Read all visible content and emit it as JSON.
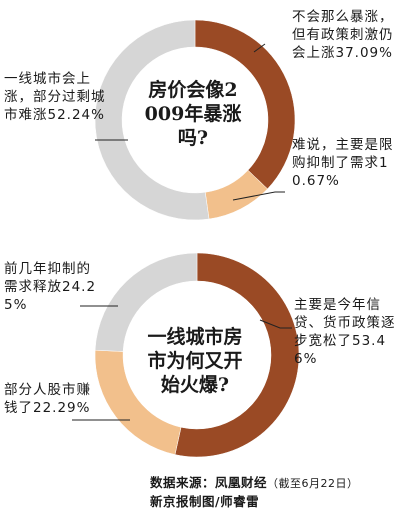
{
  "chart_data": [
    {
      "type": "pie",
      "donut": true,
      "title": "房价会像2009年暴涨吗?",
      "slices": [
        {
          "label": "不会那么暴涨，但有政策刺激仍会上涨",
          "value": 37.09,
          "value_text": "37.09%",
          "color": "#9a4a25"
        },
        {
          "label": "难说，主要是限购抑制了需求",
          "value": 10.67,
          "value_text": "10.67%",
          "color": "#f2c08c"
        },
        {
          "label": "一线城市会上涨，部分过剩城市难涨",
          "value": 52.24,
          "value_text": "52.24%",
          "color": "#d6d6d6"
        }
      ]
    },
    {
      "type": "pie",
      "donut": true,
      "title": "一线城市房市为何又开始火爆?",
      "slices": [
        {
          "label": "主要是今年信贷、货币政策逐步宽松了",
          "value": 53.46,
          "value_text": "53.46%",
          "color": "#9a4a25"
        },
        {
          "label": "部分人股市赚钱了",
          "value": 22.29,
          "value_text": "22.29%",
          "color": "#f2c08c"
        },
        {
          "label": "前几年抑制的需求释放",
          "value": 24.25,
          "value_text": "24.25%",
          "color": "#d6d6d6"
        }
      ]
    }
  ],
  "footer": {
    "source": "数据来源：凤凰财经",
    "note": "（截至6月22日）",
    "credit": "新京报制图/师睿雷"
  }
}
